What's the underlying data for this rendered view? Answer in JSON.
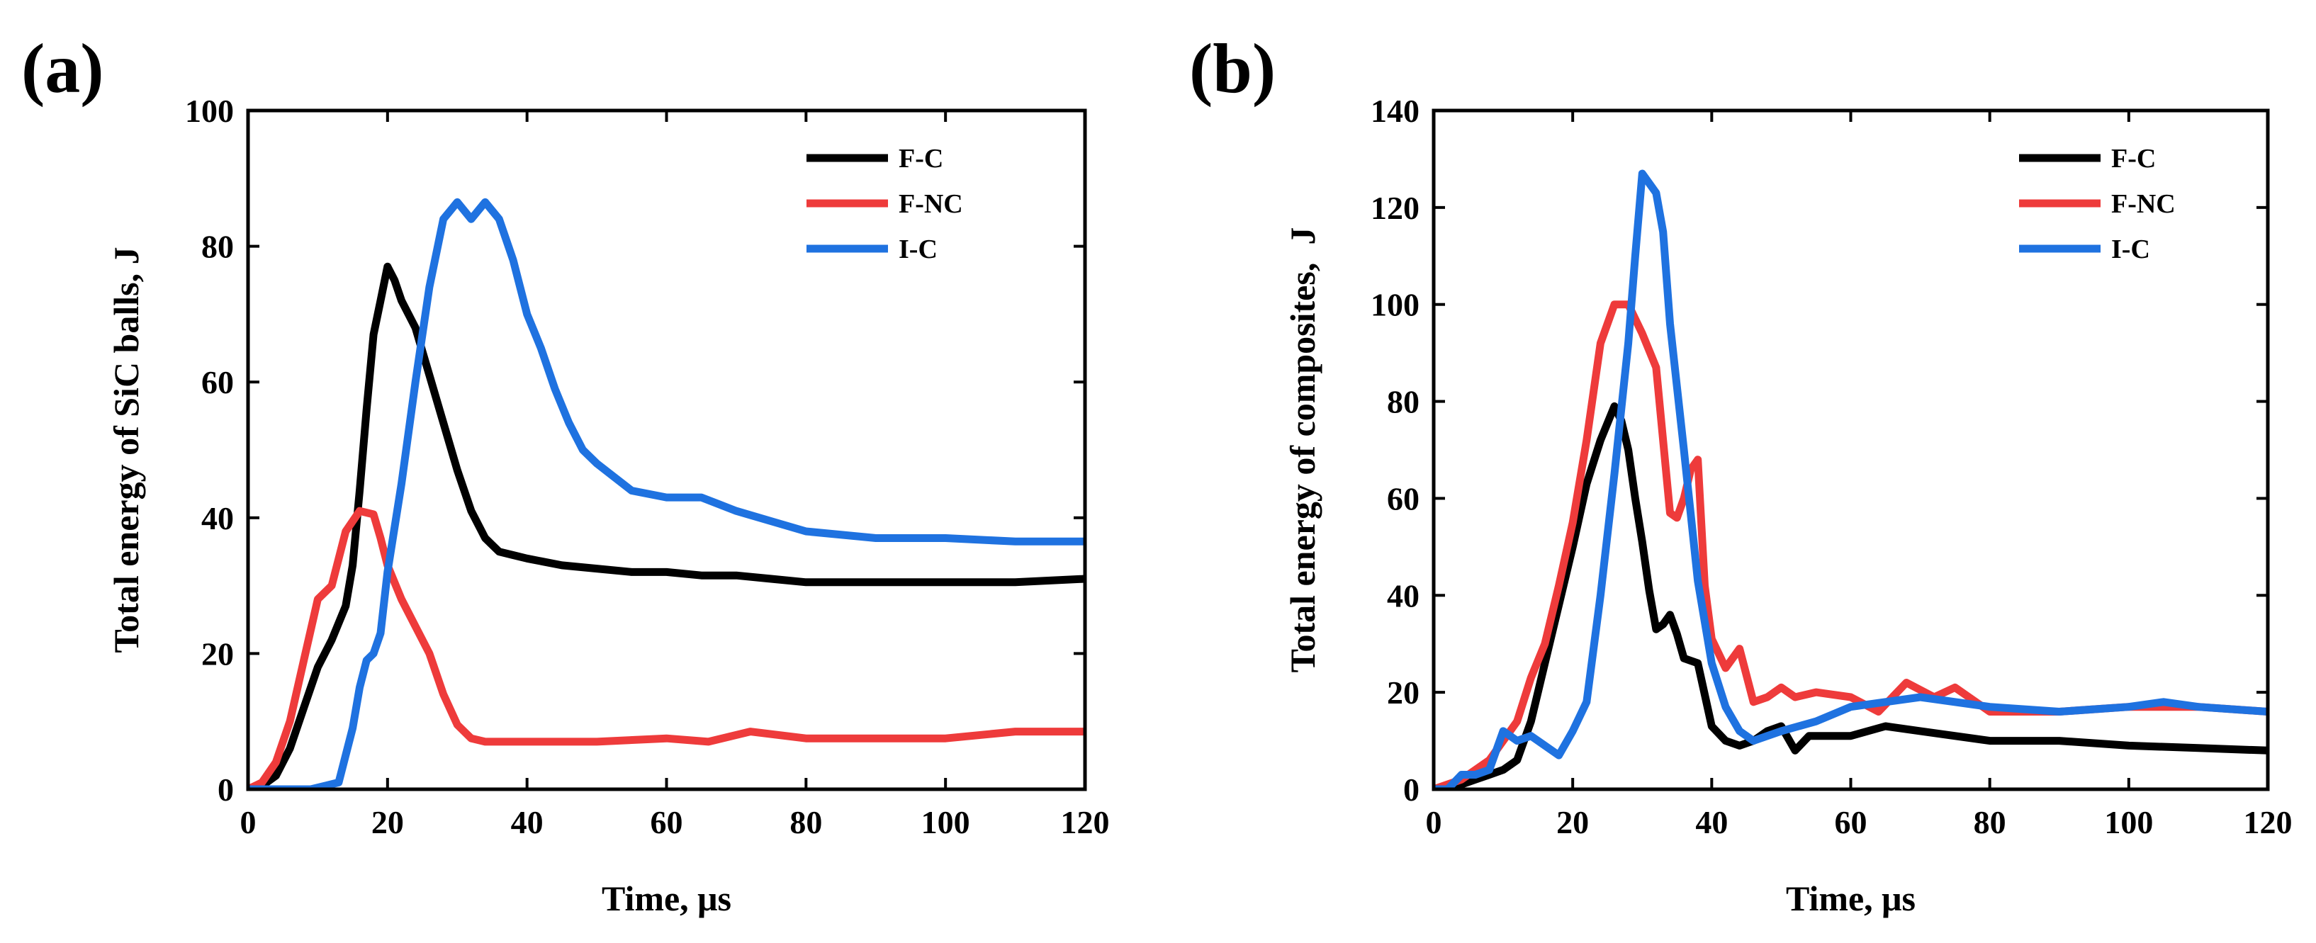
{
  "chart_data": [
    {
      "type": "line",
      "panel_label": "(a)",
      "title": "",
      "xlabel": "Time, μs",
      "ylabel": "Total energy of SiC balls, J",
      "xlim": [
        0,
        120
      ],
      "ylim": [
        0,
        100
      ],
      "xticks": [
        0,
        20,
        40,
        60,
        80,
        100,
        120
      ],
      "yticks": [
        0,
        20,
        40,
        60,
        80,
        100
      ],
      "grid": false,
      "legend_position": "top-right",
      "series": [
        {
          "name": "F-C",
          "color": "#000000",
          "x": [
            0,
            2,
            4,
            6,
            8,
            10,
            12,
            14,
            15,
            16,
            17,
            18,
            19,
            20,
            21,
            22,
            24,
            26,
            28,
            30,
            32,
            34,
            36,
            38,
            40,
            45,
            50,
            55,
            60,
            65,
            70,
            75,
            80,
            90,
            100,
            110,
            120
          ],
          "y": [
            0,
            0.5,
            2,
            6,
            12,
            18,
            22,
            27,
            33,
            44,
            56,
            67,
            72,
            77,
            75,
            72,
            68,
            61,
            54,
            47,
            41,
            37,
            35,
            34.5,
            34,
            33,
            32.5,
            32,
            32,
            31.5,
            31.5,
            31,
            30.5,
            30.5,
            30.5,
            30.5,
            31
          ]
        },
        {
          "name": "F-NC",
          "color": "#ee3b3b",
          "x": [
            0,
            2,
            4,
            6,
            8,
            10,
            12,
            14,
            16,
            18,
            19,
            20,
            22,
            24,
            26,
            28,
            30,
            32,
            34,
            36,
            40,
            50,
            60,
            66,
            72,
            80,
            90,
            100,
            110,
            120
          ],
          "y": [
            0,
            1,
            4,
            10,
            19,
            28,
            30,
            38,
            41,
            40.5,
            37,
            33,
            28,
            24,
            20,
            14,
            9.5,
            7.5,
            7,
            7,
            7,
            7,
            7.5,
            7,
            8.5,
            7.5,
            7.5,
            7.5,
            8.5,
            8.5
          ]
        },
        {
          "name": "I-C",
          "color": "#1f72e0",
          "x": [
            0,
            5,
            9,
            11,
            13,
            15,
            16,
            17,
            18,
            19,
            20,
            22,
            24,
            26,
            28,
            30,
            32,
            34,
            36,
            38,
            40,
            42,
            44,
            46,
            48,
            50,
            55,
            60,
            65,
            70,
            75,
            80,
            90,
            100,
            110,
            120
          ],
          "y": [
            0,
            0,
            0,
            0.5,
            1,
            9,
            15,
            19,
            20,
            23,
            32,
            45,
            60,
            74,
            84,
            86.5,
            84,
            86.5,
            84,
            78,
            70,
            65,
            59,
            54,
            50,
            48,
            44,
            43,
            43,
            41,
            39.5,
            38,
            37,
            37,
            36.5,
            36.5
          ]
        }
      ]
    },
    {
      "type": "line",
      "panel_label": "(b)",
      "title": "",
      "xlabel": "Time, μs",
      "ylabel": "Total energy of composites,  J",
      "xlim": [
        0,
        120
      ],
      "ylim": [
        0,
        140
      ],
      "xticks": [
        0,
        20,
        40,
        60,
        80,
        100,
        120
      ],
      "yticks": [
        0,
        20,
        40,
        60,
        80,
        100,
        120,
        140
      ],
      "grid": false,
      "legend_position": "top-right",
      "series": [
        {
          "name": "F-C",
          "color": "#000000",
          "x": [
            0,
            4,
            6,
            8,
            10,
            12,
            14,
            16,
            18,
            20,
            22,
            24,
            26,
            27,
            28,
            29,
            30,
            31,
            32,
            33,
            34,
            35,
            36,
            38,
            40,
            42,
            44,
            46,
            48,
            50,
            52,
            54,
            60,
            65,
            70,
            80,
            90,
            100,
            110,
            120
          ],
          "y": [
            0,
            1,
            2,
            3,
            4,
            6,
            14,
            26,
            38,
            50,
            63,
            72,
            79,
            76,
            70,
            60,
            51,
            41,
            33,
            34,
            36,
            32,
            27,
            26,
            13,
            10,
            9,
            10,
            12,
            13,
            8,
            11,
            11,
            13,
            12,
            10,
            10,
            9,
            8.5,
            8
          ]
        },
        {
          "name": "F-NC",
          "color": "#ee3b3b",
          "x": [
            0,
            4,
            6,
            8,
            10,
            12,
            14,
            16,
            18,
            20,
            22,
            24,
            26,
            28,
            30,
            32,
            34,
            35,
            36,
            37,
            38,
            39,
            40,
            42,
            44,
            46,
            48,
            50,
            52,
            55,
            60,
            64,
            68,
            72,
            75,
            80,
            90,
            100,
            110,
            120
          ],
          "y": [
            0,
            2,
            4,
            6,
            10,
            14,
            23,
            30,
            42,
            55,
            72,
            92,
            100,
            100,
            94,
            87,
            57,
            56,
            60,
            66,
            68,
            42,
            31,
            25,
            29,
            18,
            19,
            21,
            19,
            20,
            19,
            16,
            22,
            19,
            21,
            16,
            16,
            17,
            17,
            16
          ]
        },
        {
          "name": "I-C",
          "color": "#1f72e0",
          "x": [
            0,
            2,
            4,
            6,
            8,
            10,
            12,
            14,
            16,
            18,
            20,
            22,
            24,
            26,
            28,
            29,
            30,
            31,
            32,
            33,
            34,
            36,
            38,
            40,
            42,
            44,
            46,
            50,
            55,
            60,
            65,
            70,
            80,
            90,
            100,
            105,
            110,
            120
          ],
          "y": [
            0,
            0,
            3,
            3,
            4,
            12,
            10,
            11,
            9,
            7,
            12,
            18,
            40,
            65,
            92,
            110,
            127,
            125,
            123,
            115,
            96,
            70,
            43,
            26,
            17,
            12,
            10,
            12,
            14,
            17,
            18,
            19,
            17,
            16,
            17,
            18,
            17,
            16
          ]
        }
      ]
    }
  ]
}
